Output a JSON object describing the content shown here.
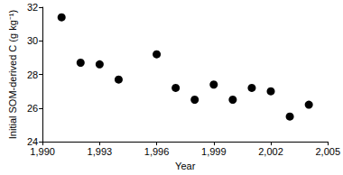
{
  "chart_data": {
    "type": "scatter",
    "x_label": "Year",
    "y_label": "Initial SOM-derived C (g kg⁻¹)",
    "x": [
      1991,
      1992,
      1993,
      1994,
      1996,
      1997,
      1998,
      1999,
      2000,
      2001,
      2002,
      2003,
      2004
    ],
    "values": [
      31.4,
      28.7,
      28.6,
      27.7,
      29.2,
      27.2,
      26.5,
      27.4,
      26.5,
      27.2,
      27.0,
      25.5,
      26.2
    ],
    "color": "#000000",
    "marker": "circle",
    "xlim": [
      1990,
      2005
    ],
    "xticks": [
      1990,
      1993,
      1996,
      1999,
      2002,
      2005
    ],
    "ylim": [
      24,
      32
    ],
    "yticks": [
      24,
      26,
      28,
      30,
      32
    ],
    "grid": false
  }
}
